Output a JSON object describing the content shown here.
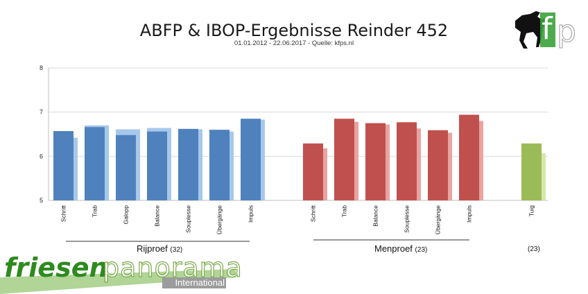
{
  "title": "ABFP & IBOP-Ergebnisse Reinder 452",
  "subtitle": "01.01.2012 - 22.06.2017 - Quelle: kfps.nl",
  "logo_text": "fp",
  "brand": {
    "word1": "friesen",
    "word2": "panorama",
    "word3": "International"
  },
  "colors": {
    "rijproef_dark": "#4f81bd",
    "rijproef_light": "#a6c8ea",
    "menproef_dark": "#c0504d",
    "menproef_light": "#e9a3a1",
    "tuig_dark": "#9bbb59",
    "tuig_light": "#d6e8a8",
    "grid": "#d9d9d9",
    "brand_green": "#4a9a2c"
  },
  "chart_data": {
    "type": "bar",
    "ylim": [
      5,
      8
    ],
    "yticks": [
      5,
      6,
      7,
      8
    ],
    "grid": true,
    "legend": "none",
    "groups": [
      {
        "name": "Rijproef",
        "count": "(32)",
        "categories": [
          "Schritt",
          "Trab",
          "Galopp",
          "Balance",
          "Souplesse",
          "Übergänge",
          "Impuls"
        ],
        "series": [
          {
            "role": "dark",
            "values": [
              6.57,
              6.66,
              6.48,
              6.56,
              6.62,
              6.6,
              6.85
            ]
          },
          {
            "role": "light",
            "values": [
              6.42,
              6.7,
              6.61,
              6.64,
              6.61,
              6.56,
              6.83
            ]
          }
        ]
      },
      {
        "name": "Menproef",
        "count": "(23)",
        "categories": [
          "Schritt",
          "Trab",
          "Balance",
          "Souplesse",
          "Übergänge",
          "Impuls"
        ],
        "series": [
          {
            "role": "dark",
            "values": [
              6.29,
              6.85,
              6.75,
              6.77,
              6.59,
              6.94
            ]
          },
          {
            "role": "light",
            "values": [
              6.18,
              6.78,
              6.72,
              6.63,
              6.53,
              6.8
            ]
          }
        ]
      },
      {
        "name": "",
        "count": "(23)",
        "categories": [
          "Tuig"
        ],
        "series": [
          {
            "role": "dark",
            "values": [
              6.29
            ]
          },
          {
            "role": "light",
            "values": [
              6.07
            ]
          }
        ]
      }
    ]
  }
}
